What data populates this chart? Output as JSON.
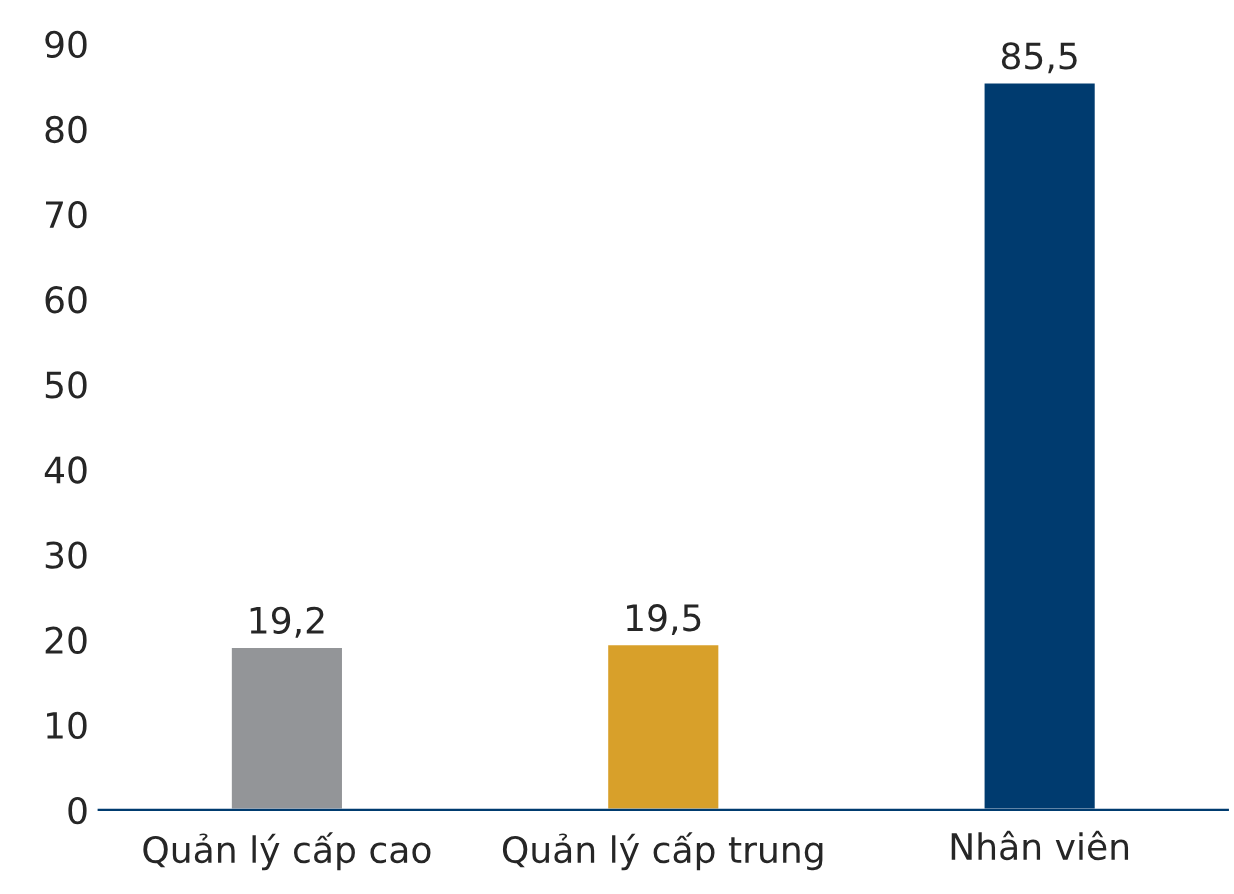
{
  "chart_data": {
    "type": "bar",
    "categories": [
      "Quản lý cấp cao",
      "Quản lý cấp trung",
      "Nhân viên"
    ],
    "values": [
      19.2,
      19.5,
      85.5
    ],
    "colors": [
      "#939598",
      "#d8a02a",
      "#003b6f"
    ],
    "value_labels": [
      "19,2",
      "19,5",
      "85,5"
    ],
    "ylim": [
      0,
      90
    ],
    "yticks": [
      0,
      10,
      20,
      30,
      40,
      50,
      60,
      70,
      80,
      90
    ],
    "grid": false,
    "legend": false
  }
}
